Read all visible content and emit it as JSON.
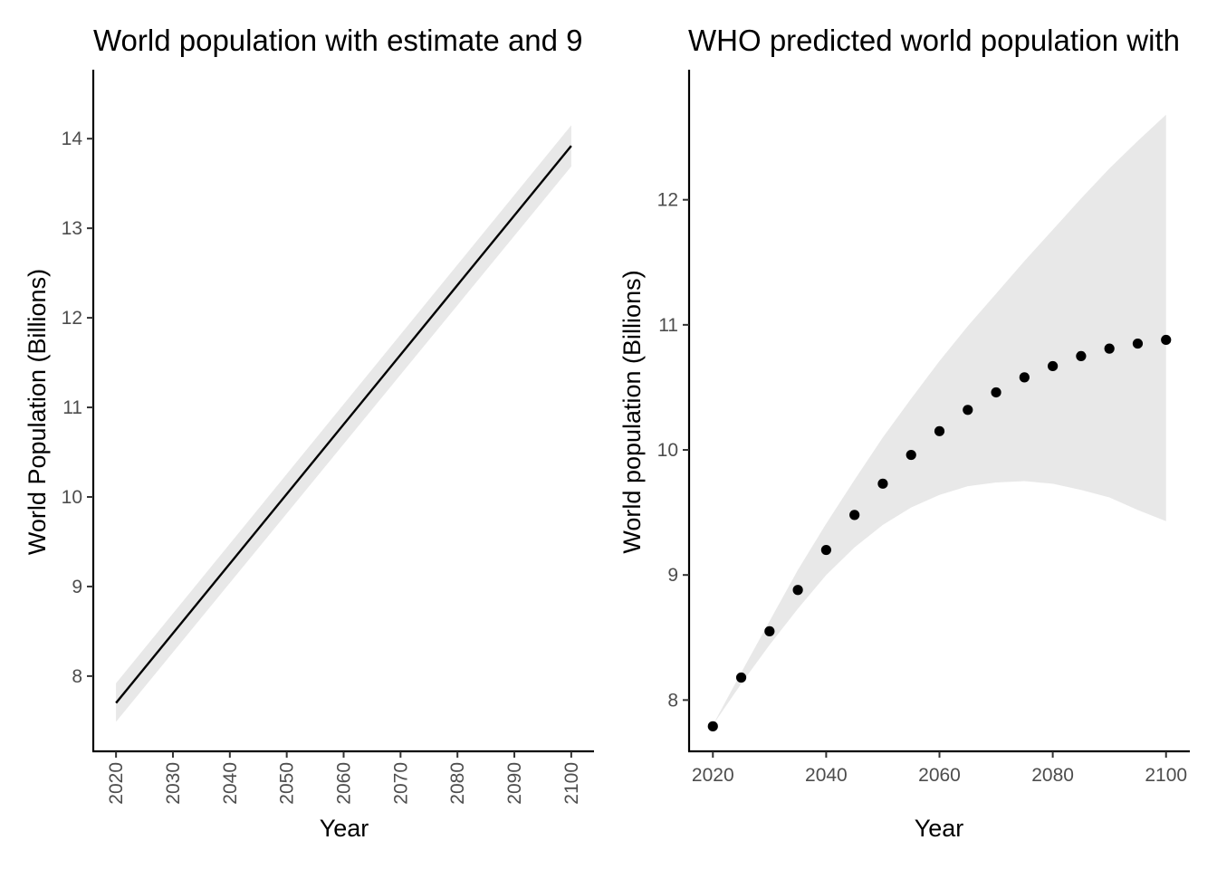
{
  "chart_data": [
    {
      "type": "line",
      "title": "World population with estimate and 9",
      "xlabel": "Year",
      "ylabel": "World Population (Billions)",
      "xlim": [
        2016,
        2104
      ],
      "ylim": [
        7.16,
        14.77
      ],
      "x_ticks": [
        2020,
        2030,
        2040,
        2050,
        2060,
        2070,
        2080,
        2090,
        2100
      ],
      "y_ticks": [
        8,
        9,
        10,
        11,
        12,
        13,
        14
      ],
      "grid": false,
      "legend": "none",
      "series": [
        {
          "x": [
            2020,
            2100
          ],
          "y": [
            7.7,
            13.92
          ],
          "ribbon_lower": [
            7.49,
            13.69
          ],
          "ribbon_upper": [
            7.92,
            14.15
          ],
          "color": "#000000",
          "ribbon_color": "#e8e8e8"
        }
      ]
    },
    {
      "type": "scatter",
      "title": "WHO predicted world population with",
      "xlabel": "Year",
      "ylabel": "World population (Billions)",
      "xlim": [
        2015.8,
        2104.2
      ],
      "ylim": [
        7.59,
        13.04
      ],
      "x_ticks": [
        2020,
        2040,
        2060,
        2080,
        2100
      ],
      "y_ticks": [
        8,
        9,
        10,
        11,
        12
      ],
      "grid": false,
      "legend": "none",
      "series": [
        {
          "x": [
            2020,
            2025,
            2030,
            2035,
            2040,
            2045,
            2050,
            2055,
            2060,
            2065,
            2070,
            2075,
            2080,
            2085,
            2090,
            2095,
            2100
          ],
          "y": [
            7.79,
            8.18,
            8.55,
            8.88,
            9.2,
            9.48,
            9.73,
            9.96,
            10.15,
            10.32,
            10.46,
            10.58,
            10.67,
            10.75,
            10.81,
            10.85,
            10.88
          ],
          "ribbon_lower": [
            7.8,
            8.13,
            8.44,
            8.73,
            9.0,
            9.22,
            9.4,
            9.54,
            9.64,
            9.71,
            9.74,
            9.75,
            9.73,
            9.68,
            9.62,
            9.52,
            9.43
          ],
          "ribbon_upper": [
            7.8,
            8.22,
            8.63,
            9.04,
            9.41,
            9.76,
            10.1,
            10.41,
            10.71,
            10.99,
            11.25,
            11.51,
            11.76,
            12.01,
            12.25,
            12.47,
            12.68
          ],
          "color": "#000000",
          "ribbon_color": "#e8e8e8"
        }
      ]
    }
  ]
}
